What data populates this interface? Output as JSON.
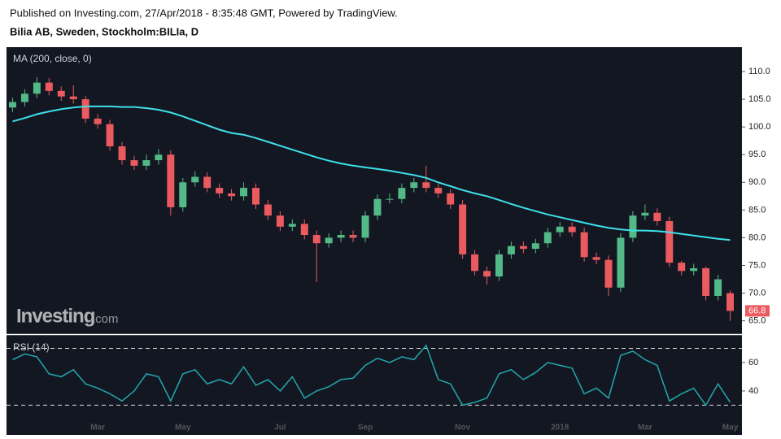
{
  "header": {
    "published": "Published on Investing.com, 27/Apr/2018 - 8:35:48 GMT, Powered by TradingView.",
    "title": "Bilia AB, Sweden, Stockholm:BILIa, D",
    "logo": "Investing",
    "logo_suffix": ".com"
  },
  "chart_data": [
    {
      "type": "candlestick",
      "indicator_label": "MA (200, close, 0)",
      "categories": [
        null,
        null,
        null,
        null,
        null,
        null,
        null,
        "Mar",
        null,
        null,
        null,
        null,
        null,
        null,
        "May",
        null,
        null,
        null,
        null,
        null,
        null,
        null,
        "Jul",
        null,
        null,
        null,
        null,
        null,
        null,
        "Sep",
        null,
        null,
        null,
        null,
        null,
        null,
        null,
        "Nov",
        null,
        null,
        null,
        null,
        null,
        null,
        null,
        "2018",
        null,
        null,
        null,
        null,
        null,
        null,
        "Mar",
        null,
        null,
        null,
        null,
        null,
        null,
        "May"
      ],
      "open": [
        103.5,
        104.5,
        106,
        108,
        106.5,
        105.5,
        105,
        101.5,
        100.5,
        96.5,
        94,
        93,
        94,
        95,
        85.5,
        90,
        91,
        89,
        88,
        87.5,
        89,
        86,
        84,
        82,
        82.5,
        80.5,
        79,
        80,
        80.5,
        80,
        84,
        87,
        87,
        89,
        90,
        89,
        88,
        86,
        77,
        74,
        73,
        77,
        78.5,
        78,
        79,
        81,
        82,
        81,
        76.5,
        76,
        71,
        80,
        84,
        84.5,
        83,
        75.5,
        74,
        74.5,
        69.5,
        70
      ],
      "high": [
        105.3,
        106.8,
        109,
        108.8,
        107.3,
        107.5,
        105.6,
        102.3,
        101.3,
        97.3,
        94.8,
        95,
        96,
        95.8,
        90.8,
        92,
        91.8,
        89.8,
        88.8,
        90,
        89.8,
        86.8,
        84.8,
        83.3,
        83.3,
        81.3,
        80.8,
        81.3,
        81.3,
        84.8,
        87.8,
        88,
        89.8,
        90.8,
        93,
        89.8,
        88.8,
        86.8,
        77.8,
        74.8,
        77.8,
        79.3,
        79.3,
        79.8,
        81.8,
        82.8,
        82.8,
        81.8,
        77.3,
        76.8,
        80.8,
        84.8,
        86,
        85.3,
        83.8,
        75.8,
        75.3,
        74.8,
        73.3,
        70.5
      ],
      "low": [
        102.7,
        103.7,
        105.2,
        105.7,
        104.7,
        104.2,
        100.7,
        99.7,
        95.7,
        93.2,
        92.2,
        92.2,
        93.2,
        84,
        84.7,
        89.2,
        88.2,
        87.2,
        86.7,
        86.7,
        85.2,
        83.2,
        81.2,
        81.2,
        79.7,
        72,
        78.2,
        79.2,
        79.2,
        79.2,
        83.2,
        86.2,
        86.2,
        88.2,
        88.2,
        87.2,
        85.2,
        76.2,
        73.2,
        71.5,
        72.2,
        76.2,
        77.2,
        77.2,
        78.2,
        80.2,
        80.2,
        75.7,
        75.2,
        69.5,
        70.2,
        79.2,
        83.2,
        82.2,
        74.7,
        73.2,
        73.2,
        68.7,
        68.7,
        65
      ],
      "close": [
        104.5,
        106,
        108,
        106.5,
        105.5,
        105,
        101.5,
        100.5,
        96.5,
        94,
        93,
        94,
        95,
        85.5,
        90,
        91,
        89,
        88,
        87.5,
        89,
        86,
        84,
        82,
        82.5,
        80.5,
        79,
        80,
        80.5,
        80,
        84,
        87,
        87,
        89,
        90,
        89,
        88,
        86,
        77,
        74,
        73,
        77,
        78.5,
        78,
        79,
        81,
        82,
        81,
        76.5,
        76,
        71,
        80,
        84,
        84.5,
        83,
        75.5,
        74,
        74.5,
        69.5,
        72.5,
        66.8
      ],
      "up_color": "#53b987",
      "down_color": "#eb5a5f",
      "series": [
        {
          "name": "MA",
          "color": "#3ee0ea",
          "values": [
            101,
            101.6,
            102.3,
            102.8,
            103.2,
            103.5,
            103.7,
            103.7,
            103.7,
            103.6,
            103.6,
            103.4,
            103.1,
            102.6,
            101.9,
            101.1,
            100.3,
            99.5,
            98.9,
            98.6,
            98,
            97.3,
            96.6,
            95.9,
            95.2,
            94.5,
            93.9,
            93.4,
            93,
            92.7,
            92.4,
            92.1,
            91.7,
            91.3,
            90.8,
            90,
            89.3,
            88.6,
            88,
            87.5,
            86.8,
            86.1,
            85.4,
            84.8,
            84.2,
            83.7,
            83.2,
            82.7,
            82.2,
            81.8,
            81.5,
            81.3,
            81.3,
            81.2,
            81,
            80.7,
            80.4,
            80.1,
            79.8,
            79.6
          ]
        }
      ],
      "ylim": [
        62.6,
        114.4
      ],
      "yticks": [
        {
          "value": 65,
          "label": "65.0"
        },
        {
          "value": 70,
          "label": "70.0"
        },
        {
          "value": 75,
          "label": "75.0"
        },
        {
          "value": 80,
          "label": "80.0"
        },
        {
          "value": 85,
          "label": "85.0"
        },
        {
          "value": 90,
          "label": "90.0"
        },
        {
          "value": 95,
          "label": "95.0"
        },
        {
          "value": 100,
          "label": "100.0"
        },
        {
          "value": 105,
          "label": "105.0"
        },
        {
          "value": 110,
          "label": "110.0"
        }
      ]
    },
    {
      "type": "line",
      "indicator_label": "RSI (14)",
      "series": [
        {
          "name": "RSI",
          "color": "#22a8ad",
          "values": [
            62,
            66,
            64,
            52,
            50,
            55,
            45,
            42,
            38,
            33,
            40,
            52,
            50,
            33,
            52,
            55,
            45,
            48,
            45,
            57,
            44,
            48,
            40,
            50,
            35,
            40,
            43,
            48,
            49,
            58,
            63,
            60,
            64,
            62,
            72,
            48,
            45,
            30,
            32,
            35,
            52,
            55,
            48,
            53,
            60,
            58,
            56,
            38,
            42,
            35,
            65,
            68,
            62,
            58,
            33,
            38,
            42,
            30,
            45,
            32
          ]
        }
      ],
      "levels": [
        30,
        70
      ],
      "ylim": [
        9.1,
        79.4
      ],
      "yticks": [
        40,
        60
      ]
    }
  ]
}
